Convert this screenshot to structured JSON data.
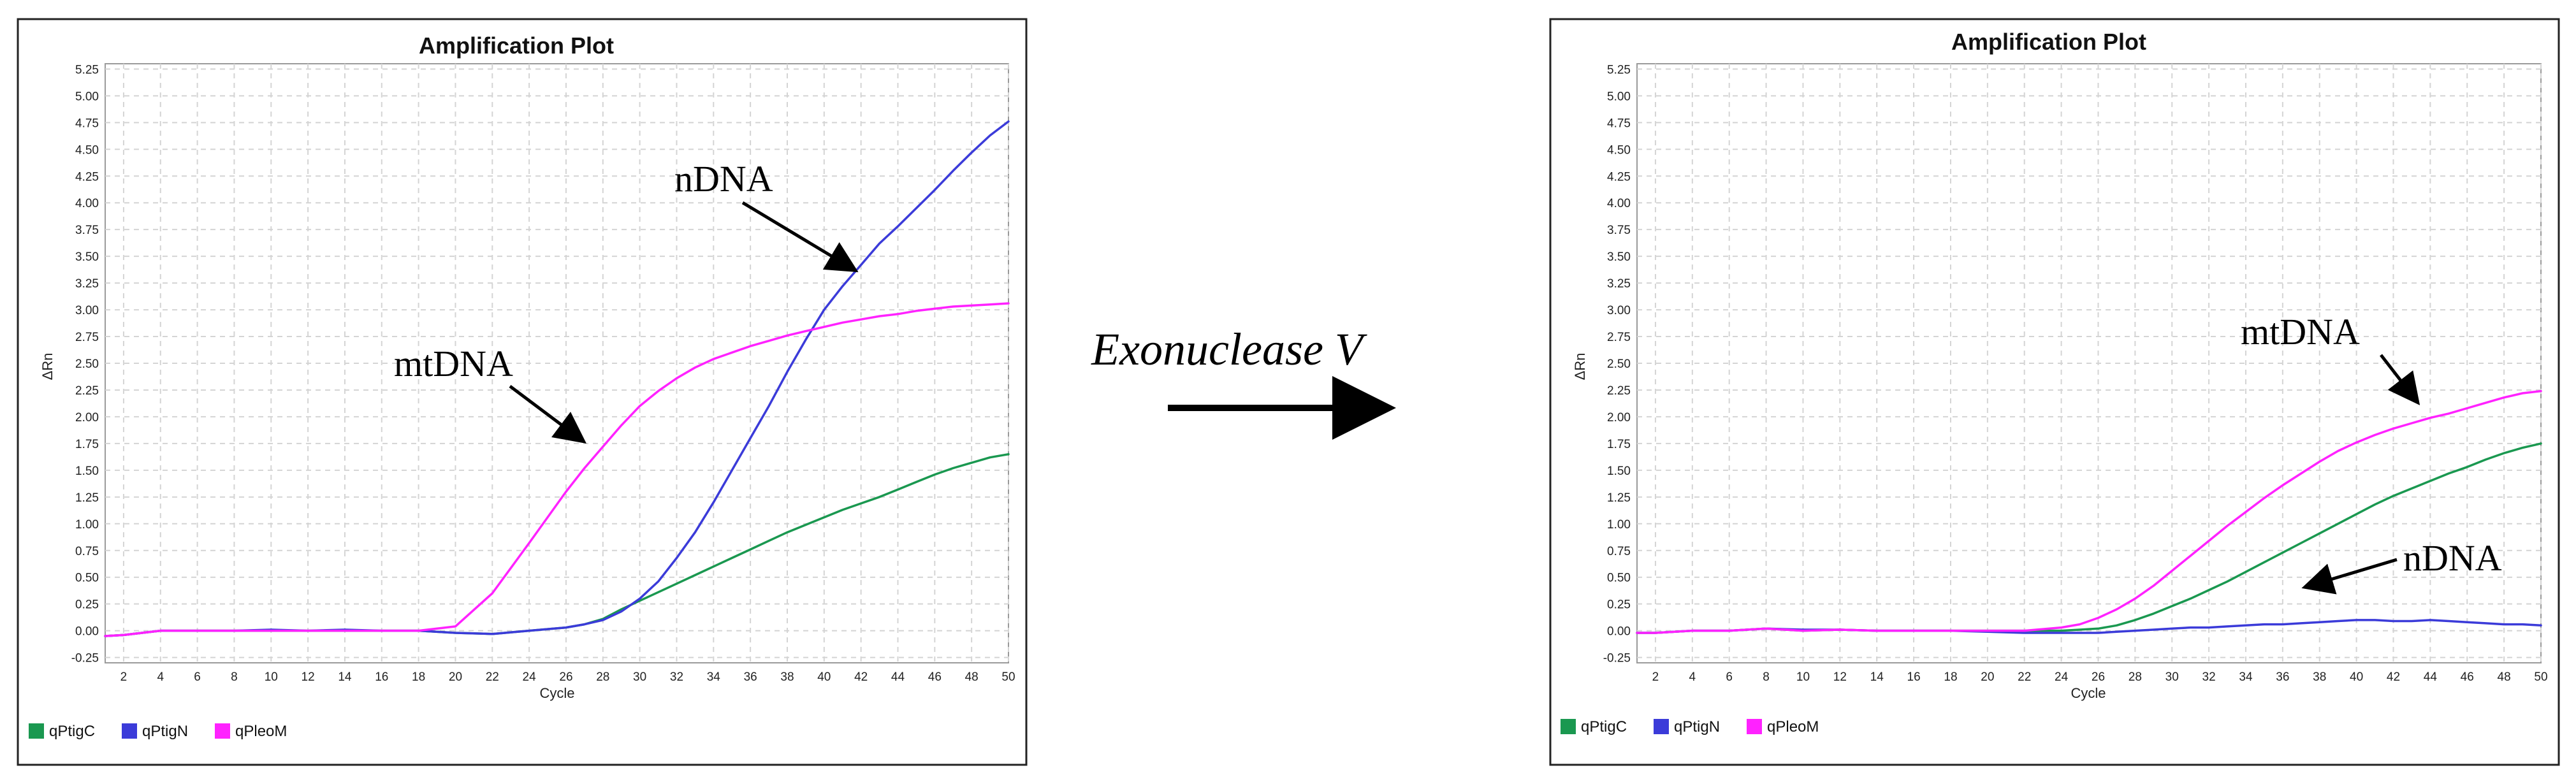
{
  "center_label": "Exonuclease V",
  "chart_data": [
    {
      "type": "line",
      "title": "Amplification Plot",
      "xlabel": "Cycle",
      "ylabel": "ΔRn",
      "xlim": [
        1,
        50
      ],
      "ylim": [
        -0.3,
        5.3
      ],
      "x_ticks": [
        2,
        4,
        6,
        8,
        10,
        12,
        14,
        16,
        18,
        20,
        22,
        24,
        26,
        28,
        30,
        32,
        34,
        36,
        38,
        40,
        42,
        44,
        46,
        48,
        50
      ],
      "y_ticks": [
        -0.25,
        0.0,
        0.25,
        0.5,
        0.75,
        1.0,
        1.25,
        1.5,
        1.75,
        2.0,
        2.25,
        2.5,
        2.75,
        3.0,
        3.25,
        3.5,
        3.75,
        4.0,
        4.25,
        4.5,
        4.75,
        5.0,
        5.25
      ],
      "grid": true,
      "legend_position": "bottom-left",
      "x": [
        1,
        2,
        4,
        6,
        8,
        10,
        12,
        14,
        16,
        18,
        20,
        22,
        24,
        26,
        27,
        28,
        29,
        30,
        31,
        32,
        33,
        34,
        35,
        36,
        37,
        38,
        39,
        40,
        41,
        42,
        43,
        44,
        45,
        46,
        47,
        48,
        49,
        50
      ],
      "series": [
        {
          "name": "qPtigC",
          "color": "#1a9850",
          "values": [
            -0.05,
            -0.04,
            0.0,
            0.0,
            0.0,
            0.0,
            0.0,
            0.0,
            0.0,
            0.0,
            -0.02,
            -0.03,
            0.0,
            0.03,
            0.06,
            0.11,
            0.2,
            0.28,
            0.36,
            0.44,
            0.52,
            0.6,
            0.68,
            0.76,
            0.84,
            0.92,
            0.99,
            1.06,
            1.13,
            1.19,
            1.25,
            1.32,
            1.39,
            1.46,
            1.52,
            1.57,
            1.62,
            1.65
          ]
        },
        {
          "name": "qPtigN",
          "color": "#3b3bd9",
          "values": [
            -0.05,
            -0.04,
            0.0,
            0.0,
            0.0,
            0.01,
            0.0,
            0.01,
            0.0,
            0.0,
            -0.02,
            -0.03,
            0.0,
            0.03,
            0.06,
            0.1,
            0.18,
            0.3,
            0.46,
            0.68,
            0.92,
            1.2,
            1.5,
            1.8,
            2.1,
            2.42,
            2.72,
            3.0,
            3.22,
            3.42,
            3.62,
            3.78,
            3.95,
            4.12,
            4.3,
            4.47,
            4.63,
            4.76
          ]
        },
        {
          "name": "qPleoM",
          "color": "#ff22ff",
          "values": [
            -0.05,
            -0.04,
            0.0,
            0.0,
            0.0,
            0.0,
            0.0,
            0.0,
            0.0,
            0.0,
            0.04,
            0.35,
            0.82,
            1.3,
            1.52,
            1.72,
            1.92,
            2.1,
            2.24,
            2.36,
            2.46,
            2.54,
            2.6,
            2.66,
            2.71,
            2.76,
            2.8,
            2.84,
            2.88,
            2.91,
            2.94,
            2.96,
            2.99,
            3.01,
            3.03,
            3.04,
            3.05,
            3.06
          ]
        }
      ],
      "annotations": [
        "nDNA",
        "mtDNA"
      ]
    },
    {
      "type": "line",
      "title": "Amplification Plot",
      "xlabel": "Cycle",
      "ylabel": "ΔRn",
      "xlim": [
        1,
        50
      ],
      "ylim": [
        -0.3,
        5.3
      ],
      "x_ticks": [
        2,
        4,
        6,
        8,
        10,
        12,
        14,
        16,
        18,
        20,
        22,
        24,
        26,
        28,
        30,
        32,
        34,
        36,
        38,
        40,
        42,
        44,
        46,
        48,
        50
      ],
      "y_ticks": [
        -0.25,
        0.0,
        0.25,
        0.5,
        0.75,
        1.0,
        1.25,
        1.5,
        1.75,
        2.0,
        2.25,
        2.5,
        2.75,
        3.0,
        3.25,
        3.5,
        3.75,
        4.0,
        4.25,
        4.5,
        4.75,
        5.0,
        5.25
      ],
      "grid": true,
      "legend_position": "bottom-left",
      "x": [
        1,
        2,
        4,
        6,
        8,
        10,
        12,
        14,
        16,
        18,
        20,
        22,
        24,
        25,
        26,
        27,
        28,
        29,
        30,
        31,
        32,
        33,
        34,
        35,
        36,
        37,
        38,
        39,
        40,
        41,
        42,
        43,
        44,
        45,
        46,
        47,
        48,
        49,
        50
      ],
      "series": [
        {
          "name": "qPtigC",
          "color": "#1a9850",
          "values": [
            -0.02,
            -0.02,
            0.0,
            0.0,
            0.02,
            0.0,
            0.01,
            0.0,
            0.0,
            0.0,
            0.0,
            0.0,
            0.0,
            0.01,
            0.02,
            0.05,
            0.1,
            0.16,
            0.23,
            0.3,
            0.38,
            0.46,
            0.55,
            0.64,
            0.73,
            0.82,
            0.91,
            1.0,
            1.09,
            1.18,
            1.26,
            1.33,
            1.4,
            1.47,
            1.53,
            1.6,
            1.66,
            1.71,
            1.75
          ]
        },
        {
          "name": "qPtigN",
          "color": "#3b3bd9",
          "values": [
            -0.02,
            -0.02,
            0.0,
            0.0,
            0.02,
            0.01,
            0.01,
            0.0,
            0.0,
            0.0,
            -0.01,
            -0.02,
            -0.02,
            -0.02,
            -0.02,
            -0.01,
            0.0,
            0.01,
            0.02,
            0.03,
            0.03,
            0.04,
            0.05,
            0.06,
            0.06,
            0.07,
            0.08,
            0.09,
            0.1,
            0.1,
            0.09,
            0.09,
            0.1,
            0.09,
            0.08,
            0.07,
            0.06,
            0.06,
            0.05
          ]
        },
        {
          "name": "qPleoM",
          "color": "#ff22ff",
          "values": [
            -0.02,
            -0.02,
            0.0,
            0.0,
            0.02,
            0.0,
            0.01,
            0.0,
            0.0,
            0.0,
            0.0,
            0.0,
            0.03,
            0.06,
            0.12,
            0.2,
            0.3,
            0.42,
            0.56,
            0.7,
            0.84,
            0.98,
            1.11,
            1.24,
            1.36,
            1.47,
            1.58,
            1.68,
            1.76,
            1.83,
            1.89,
            1.94,
            1.99,
            2.03,
            2.08,
            2.13,
            2.18,
            2.22,
            2.24
          ]
        }
      ],
      "annotations": [
        "mtDNA",
        "nDNA"
      ]
    }
  ]
}
